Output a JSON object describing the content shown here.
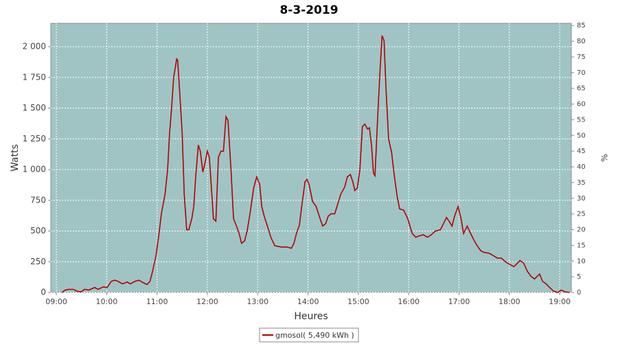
{
  "chart_data": {
    "type": "line",
    "title": "8-3-2019",
    "xlabel": "Heures",
    "ylabel": "Watts",
    "y2label": "%",
    "x": [
      9.11,
      9.18,
      9.25,
      9.34,
      9.41,
      9.49,
      9.56,
      9.65,
      9.76,
      9.83,
      9.93,
      10.01,
      10.09,
      10.16,
      10.23,
      10.31,
      10.41,
      10.47,
      10.56,
      10.64,
      10.72,
      10.8,
      10.86,
      10.91,
      10.98,
      11.03,
      11.09,
      11.16,
      11.21,
      11.25,
      11.29,
      11.33,
      11.39,
      11.41,
      11.44,
      11.5,
      11.54,
      11.59,
      11.63,
      11.69,
      11.73,
      11.77,
      11.82,
      11.86,
      11.91,
      11.95,
      12.0,
      12.04,
      12.08,
      12.12,
      12.17,
      12.22,
      12.27,
      12.32,
      12.37,
      12.41,
      12.47,
      12.52,
      12.57,
      12.63,
      12.68,
      12.74,
      12.79,
      12.85,
      12.92,
      12.98,
      13.04,
      13.08,
      13.13,
      13.2,
      13.26,
      13.34,
      13.47,
      13.58,
      13.67,
      13.72,
      13.77,
      13.83,
      13.88,
      13.94,
      13.98,
      14.02,
      14.09,
      14.16,
      14.24,
      14.29,
      14.35,
      14.4,
      14.46,
      14.53,
      14.59,
      14.65,
      14.73,
      14.78,
      14.84,
      14.89,
      14.93,
      14.98,
      15.03,
      15.08,
      15.13,
      15.18,
      15.22,
      15.26,
      15.3,
      15.33,
      15.38,
      15.43,
      15.47,
      15.51,
      15.55,
      15.6,
      15.66,
      15.71,
      15.77,
      15.82,
      15.9,
      15.98,
      16.07,
      16.14,
      16.2,
      16.29,
      16.37,
      16.45,
      16.53,
      16.63,
      16.69,
      16.75,
      16.8,
      16.86,
      16.91,
      16.98,
      17.04,
      17.09,
      17.16,
      17.23,
      17.29,
      17.36,
      17.43,
      17.5,
      17.59,
      17.68,
      17.76,
      17.84,
      17.92,
      18.0,
      18.09,
      18.14,
      18.21,
      18.28,
      18.36,
      18.43,
      18.5,
      18.55,
      18.6,
      18.66,
      18.73,
      18.8,
      18.88,
      18.96,
      19.03,
      19.1,
      19.2
    ],
    "series": [
      {
        "name": "gmosol( 5,490 kWh )",
        "color": "#b00000",
        "values": [
          0,
          20,
          25,
          25,
          10,
          5,
          25,
          20,
          40,
          25,
          45,
          40,
          90,
          100,
          90,
          70,
          85,
          70,
          90,
          100,
          80,
          65,
          90,
          170,
          300,
          450,
          650,
          800,
          1000,
          1300,
          1500,
          1750,
          1900,
          1890,
          1700,
          1300,
          800,
          510,
          510,
          600,
          700,
          950,
          1200,
          1150,
          980,
          1050,
          1150,
          1100,
          850,
          600,
          580,
          1100,
          1150,
          1150,
          1430,
          1400,
          1000,
          600,
          550,
          480,
          400,
          420,
          500,
          650,
          850,
          940,
          880,
          700,
          620,
          530,
          450,
          380,
          370,
          370,
          360,
          400,
          480,
          550,
          720,
          900,
          920,
          880,
          740,
          700,
          600,
          540,
          560,
          620,
          640,
          640,
          720,
          800,
          860,
          940,
          960,
          900,
          830,
          850,
          1000,
          1350,
          1370,
          1330,
          1340,
          1200,
          970,
          950,
          1400,
          1800,
          2090,
          2050,
          1650,
          1250,
          1140,
          960,
          780,
          680,
          670,
          600,
          480,
          450,
          460,
          470,
          450,
          470,
          500,
          510,
          560,
          610,
          580,
          540,
          620,
          700,
          600,
          480,
          540,
          480,
          430,
          380,
          340,
          325,
          320,
          300,
          280,
          280,
          250,
          230,
          210,
          230,
          260,
          240,
          170,
          130,
          110,
          130,
          150,
          90,
          70,
          40,
          10,
          0,
          20,
          5,
          0
        ]
      }
    ],
    "xlim": [
      8.89,
      19.23
    ],
    "xticks": [
      {
        "value": 9,
        "label": "09:00"
      },
      {
        "value": 10,
        "label": "10:00"
      },
      {
        "value": 11,
        "label": "11:00"
      },
      {
        "value": 12,
        "label": "12:00"
      },
      {
        "value": 13,
        "label": "13:00"
      },
      {
        "value": 14,
        "label": "14:00"
      },
      {
        "value": 15,
        "label": "15:00"
      },
      {
        "value": 16,
        "label": "16:00"
      },
      {
        "value": 17,
        "label": "17:00"
      },
      {
        "value": 18,
        "label": "18:00"
      },
      {
        "value": 19,
        "label": "19:00"
      }
    ],
    "ylim": [
      0,
      2190
    ],
    "yticks": [
      0,
      250,
      500,
      750,
      {
        "value": 1000,
        "label": "1 000"
      },
      {
        "value": 1250,
        "label": "1 250"
      },
      {
        "value": 1500,
        "label": "1 500"
      },
      {
        "value": 1750,
        "label": "1 750"
      },
      {
        "value": 2000,
        "label": "2 000"
      }
    ],
    "y2lim": [
      0,
      85.7
    ],
    "y2ticks": [
      0,
      5,
      10,
      15,
      20,
      25,
      30,
      35,
      40,
      45,
      50,
      55,
      60,
      65,
      70,
      75,
      80,
      85
    ],
    "grid": true,
    "background": "#a0c4c4"
  }
}
